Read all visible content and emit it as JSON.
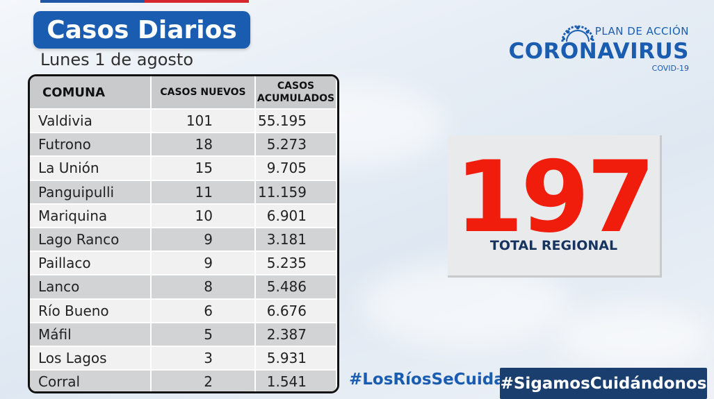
{
  "header": {
    "title": "Casos Diarios",
    "date": "Lunes 1 de agosto"
  },
  "logo": {
    "line1": "PLAN DE ACCIÓN",
    "line2": "CORONAVIRUS",
    "line3": "COVID-19",
    "icon": "virus-arc-icon"
  },
  "table": {
    "headers": [
      "COMUNA",
      "CASOS NUEVOS",
      "CASOS ACUMULADOS"
    ],
    "rows": [
      {
        "comuna": "Valdivia",
        "nuevos": "101",
        "acumulados": "55.195"
      },
      {
        "comuna": "Futrono",
        "nuevos": "18",
        "acumulados": "5.273"
      },
      {
        "comuna": "La Unión",
        "nuevos": "15",
        "acumulados": "9.705"
      },
      {
        "comuna": "Panguipulli",
        "nuevos": "11",
        "acumulados": "11.159"
      },
      {
        "comuna": "Mariquina",
        "nuevos": "10",
        "acumulados": "6.901"
      },
      {
        "comuna": "Lago Ranco",
        "nuevos": "9",
        "acumulados": "3.181"
      },
      {
        "comuna": "Paillaco",
        "nuevos": "9",
        "acumulados": "5.235"
      },
      {
        "comuna": "Lanco",
        "nuevos": "8",
        "acumulados": "5.486"
      },
      {
        "comuna": "Río Bueno",
        "nuevos": "6",
        "acumulados": "6.676"
      },
      {
        "comuna": "Máfil",
        "nuevos": "5",
        "acumulados": "2.387"
      },
      {
        "comuna": "Los Lagos",
        "nuevos": "3",
        "acumulados": "5.931"
      },
      {
        "comuna": "Corral",
        "nuevos": "2",
        "acumulados": "1.541"
      }
    ]
  },
  "total": {
    "value": "197",
    "label": "TOTAL REGIONAL"
  },
  "hashtags": {
    "first": "#LosRíosSeCuida",
    "second": "#SigamosCuidándonos"
  },
  "colors": {
    "brand_blue": "#1a5db0",
    "navy": "#1a3e6e",
    "total_red": "#f01d0d"
  }
}
